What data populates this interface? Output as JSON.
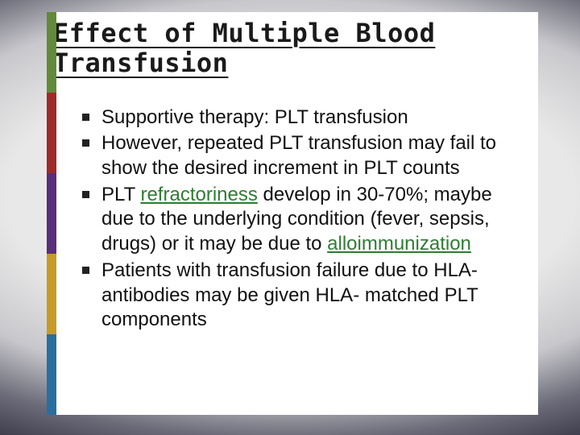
{
  "slide": {
    "title": "Effect of Multiple Blood Transfusion",
    "title_font": "monospace",
    "title_fontsize": 32,
    "title_color": "#1a1a1a",
    "body_font": "Candara",
    "body_fontsize": 24,
    "body_color": "#111111",
    "highlight_color": "#2e7d32",
    "background_color": "#ffffff",
    "outer_gradient_center": "#ededed",
    "outer_gradient_edge": "#141420",
    "side_band_colors": [
      "#628a3a",
      "#9e2a2a",
      "#5a2e7a",
      "#c79a2a",
      "#2a6e9e"
    ],
    "bullet_marker": "square",
    "bullets": [
      {
        "runs": [
          {
            "t": "Supportive therapy:  PLT transfusion",
            "hl": false
          }
        ]
      },
      {
        "runs": [
          {
            "t": "However, repeated PLT transfusion may fail to show the desired increment in PLT counts",
            "hl": false
          }
        ]
      },
      {
        "runs": [
          {
            "t": "PLT ",
            "hl": false
          },
          {
            "t": "refractoriness",
            "hl": true
          },
          {
            "t": " develop in 30-70%;  maybe due to the underlying condition (fever, sepsis, drugs) or it may be due to ",
            "hl": false
          },
          {
            "t": "alloimmunization",
            "hl": true
          }
        ]
      },
      {
        "runs": [
          {
            "t": "Patients with transfusion failure due to HLA- antibodies may be given HLA- matched PLT components",
            "hl": false
          }
        ]
      }
    ]
  }
}
